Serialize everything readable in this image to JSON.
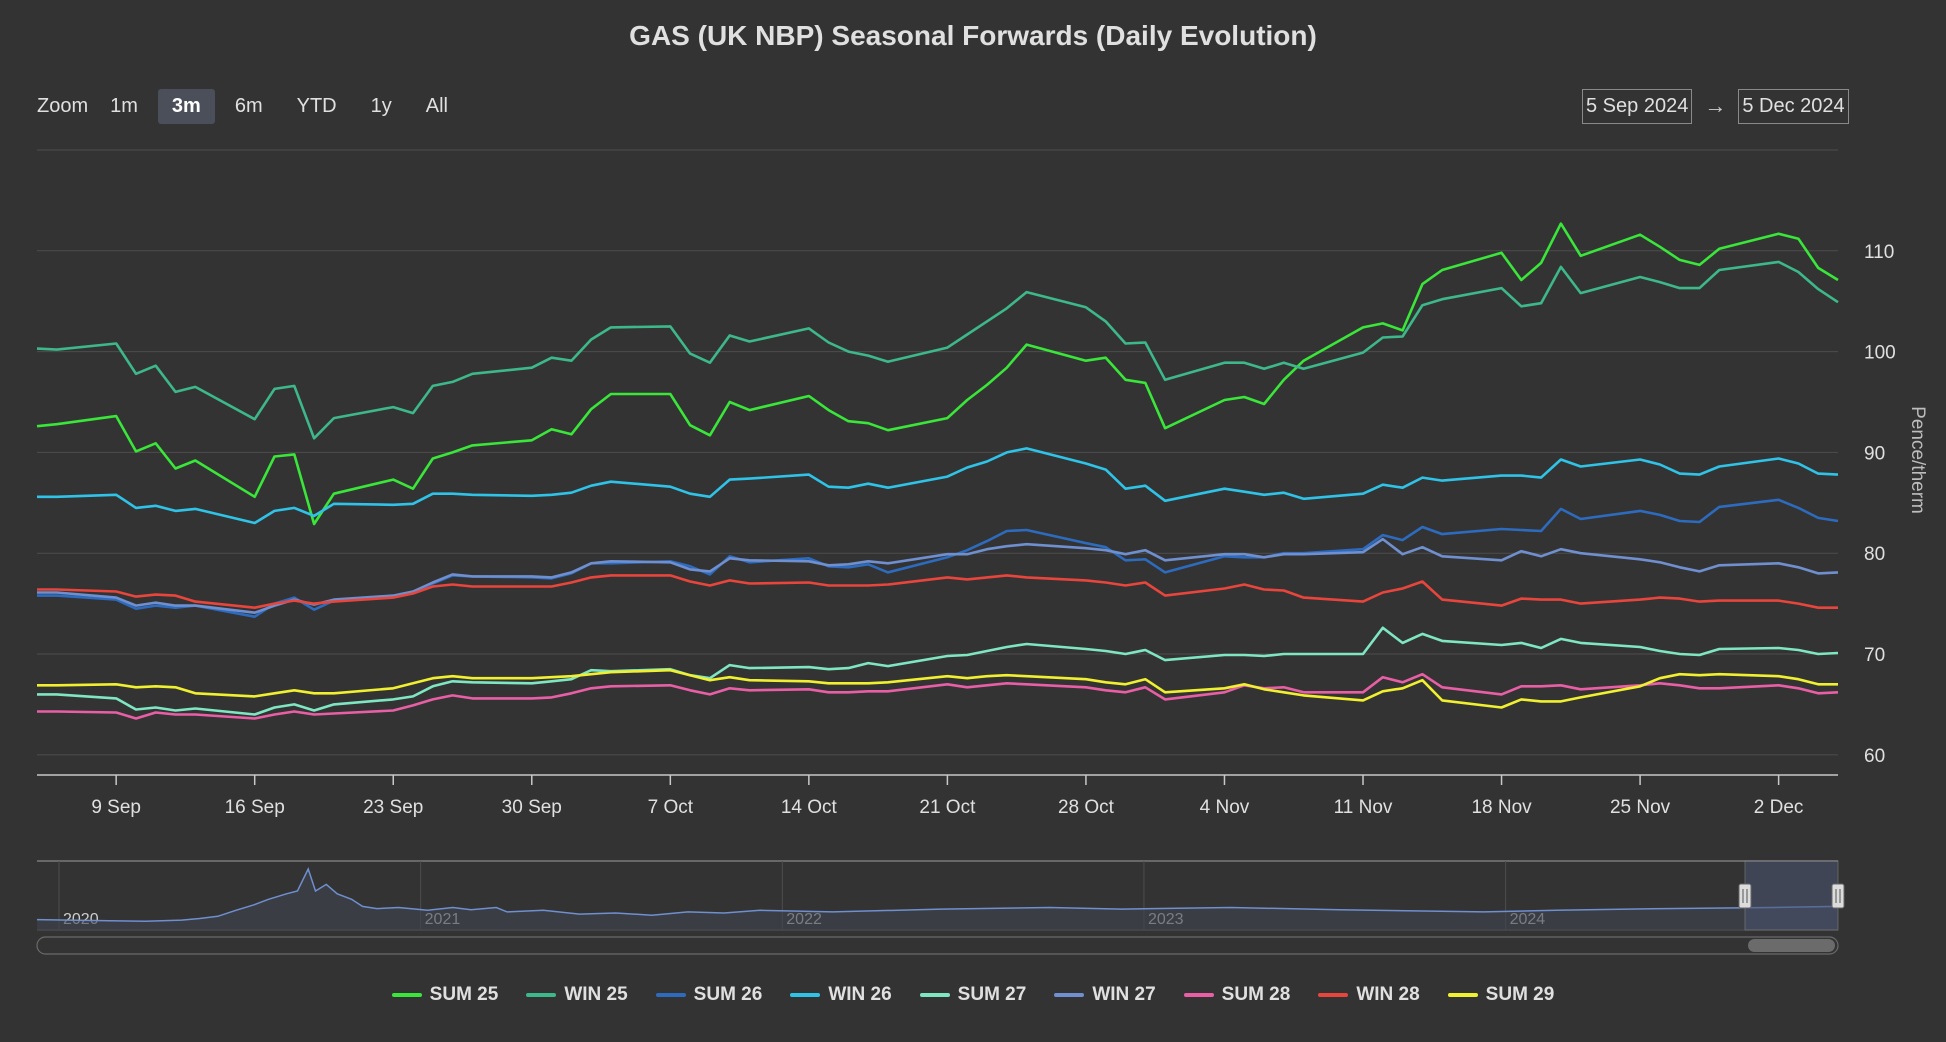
{
  "chart_data": {
    "type": "line",
    "title": "GAS (UK NBP) Seasonal Forwards (Daily Evolution)",
    "ylabel": "Pence/therm",
    "ylim": [
      58,
      120
    ],
    "yticks": [
      60,
      70,
      80,
      90,
      100,
      110
    ],
    "x_start": "2024-09-05",
    "x_end": "2024-12-05",
    "xticks": [
      {
        "date": "2024-09-09",
        "label": "9 Sep"
      },
      {
        "date": "2024-09-16",
        "label": "16 Sep"
      },
      {
        "date": "2024-09-23",
        "label": "23 Sep"
      },
      {
        "date": "2024-09-30",
        "label": "30 Sep"
      },
      {
        "date": "2024-10-07",
        "label": "7 Oct"
      },
      {
        "date": "2024-10-14",
        "label": "14 Oct"
      },
      {
        "date": "2024-10-21",
        "label": "21 Oct"
      },
      {
        "date": "2024-10-28",
        "label": "28 Oct"
      },
      {
        "date": "2024-11-04",
        "label": "4 Nov"
      },
      {
        "date": "2024-11-11",
        "label": "11 Nov"
      },
      {
        "date": "2024-11-18",
        "label": "18 Nov"
      },
      {
        "date": "2024-11-25",
        "label": "25 Nov"
      },
      {
        "date": "2024-12-02",
        "label": "2 Dec"
      }
    ],
    "grid": true,
    "legend_position": "bottom",
    "dates": [
      "2024-09-05",
      "2024-09-06",
      "2024-09-09",
      "2024-09-10",
      "2024-09-11",
      "2024-09-12",
      "2024-09-13",
      "2024-09-16",
      "2024-09-17",
      "2024-09-18",
      "2024-09-19",
      "2024-09-20",
      "2024-09-23",
      "2024-09-24",
      "2024-09-25",
      "2024-09-26",
      "2024-09-27",
      "2024-09-30",
      "2024-10-01",
      "2024-10-02",
      "2024-10-03",
      "2024-10-04",
      "2024-10-07",
      "2024-10-08",
      "2024-10-09",
      "2024-10-10",
      "2024-10-11",
      "2024-10-14",
      "2024-10-15",
      "2024-10-16",
      "2024-10-17",
      "2024-10-18",
      "2024-10-21",
      "2024-10-22",
      "2024-10-23",
      "2024-10-24",
      "2024-10-25",
      "2024-10-28",
      "2024-10-29",
      "2024-10-30",
      "2024-10-31",
      "2024-11-01",
      "2024-11-04",
      "2024-11-05",
      "2024-11-06",
      "2024-11-07",
      "2024-11-08",
      "2024-11-11",
      "2024-11-12",
      "2024-11-13",
      "2024-11-14",
      "2024-11-15",
      "2024-11-18",
      "2024-11-19",
      "2024-11-20",
      "2024-11-21",
      "2024-11-22",
      "2024-11-25",
      "2024-11-26",
      "2024-11-27",
      "2024-11-28",
      "2024-11-29",
      "2024-12-02",
      "2024-12-03",
      "2024-12-04",
      "2024-12-05"
    ],
    "series": [
      {
        "name": "SUM 25",
        "color": "#39e639",
        "values": [
          92.6,
          92.8,
          93.6,
          90.1,
          90.9,
          88.4,
          89.2,
          85.6,
          89.6,
          89.8,
          82.9,
          85.9,
          87.3,
          86.4,
          89.4,
          90.0,
          90.7,
          91.2,
          92.3,
          91.8,
          94.3,
          95.8,
          95.8,
          92.7,
          91.7,
          95.0,
          94.2,
          95.6,
          94.2,
          93.1,
          92.9,
          92.2,
          93.4,
          95.2,
          96.7,
          98.4,
          100.7,
          99.1,
          99.4,
          97.2,
          96.9,
          92.4,
          95.2,
          95.5,
          94.8,
          97.2,
          99.1,
          102.4,
          102.8,
          102.1,
          106.7,
          108.1,
          109.8,
          107.1,
          108.8,
          112.7,
          109.5,
          111.6,
          110.4,
          109.1,
          108.6,
          110.2,
          111.7,
          111.2,
          108.3,
          107.1
        ]
      },
      {
        "name": "WIN 25",
        "color": "#3db88a",
        "values": [
          100.3,
          100.2,
          100.8,
          97.8,
          98.6,
          96.0,
          96.5,
          93.3,
          96.3,
          96.6,
          91.4,
          93.4,
          94.5,
          93.9,
          96.6,
          97.0,
          97.8,
          98.4,
          99.4,
          99.1,
          101.2,
          102.4,
          102.5,
          99.8,
          98.9,
          101.6,
          101.0,
          102.3,
          100.9,
          100.0,
          99.6,
          99.0,
          100.4,
          101.7,
          103.0,
          104.3,
          105.9,
          104.4,
          103.0,
          100.8,
          100.9,
          97.2,
          98.9,
          98.9,
          98.3,
          98.9,
          98.3,
          99.9,
          101.4,
          101.5,
          104.6,
          105.2,
          106.3,
          104.5,
          104.8,
          108.4,
          105.8,
          107.4,
          106.9,
          106.3,
          106.3,
          108.1,
          108.9,
          107.9,
          106.2,
          104.9
        ]
      },
      {
        "name": "SUM 26",
        "color": "#2d6bbf",
        "values": [
          75.8,
          75.8,
          75.4,
          74.5,
          74.8,
          74.6,
          74.8,
          73.7,
          75.0,
          75.6,
          74.4,
          75.3,
          75.7,
          76.1,
          77.0,
          77.8,
          77.7,
          77.6,
          77.5,
          78.0,
          79.0,
          79.0,
          79.2,
          78.7,
          77.9,
          79.7,
          79.1,
          79.5,
          78.7,
          78.6,
          78.9,
          78.1,
          79.6,
          80.3,
          81.2,
          82.2,
          82.3,
          81.0,
          80.6,
          79.3,
          79.4,
          78.1,
          79.7,
          79.6,
          79.6,
          80.0,
          80.0,
          80.4,
          81.8,
          81.3,
          82.6,
          81.9,
          82.4,
          82.3,
          82.2,
          84.4,
          83.4,
          84.2,
          83.8,
          83.2,
          83.1,
          84.6,
          85.3,
          84.5,
          83.5,
          83.2
        ]
      },
      {
        "name": "WIN 26",
        "color": "#2fc3e8",
        "values": [
          85.6,
          85.6,
          85.8,
          84.5,
          84.7,
          84.2,
          84.4,
          83.0,
          84.2,
          84.5,
          83.7,
          84.9,
          84.8,
          84.9,
          85.9,
          85.9,
          85.8,
          85.7,
          85.8,
          86.0,
          86.7,
          87.1,
          86.6,
          85.9,
          85.6,
          87.3,
          87.4,
          87.8,
          86.6,
          86.5,
          86.9,
          86.5,
          87.6,
          88.5,
          89.1,
          90.0,
          90.4,
          88.9,
          88.3,
          86.4,
          86.7,
          85.2,
          86.4,
          86.1,
          85.8,
          86.0,
          85.4,
          85.9,
          86.8,
          86.5,
          87.5,
          87.2,
          87.7,
          87.7,
          87.5,
          89.3,
          88.6,
          89.3,
          88.8,
          87.9,
          87.8,
          88.6,
          89.4,
          88.9,
          87.9,
          87.8
        ]
      },
      {
        "name": "SUM 27",
        "color": "#7fe6c2",
        "values": [
          66.0,
          66.0,
          65.6,
          64.5,
          64.7,
          64.4,
          64.6,
          64.0,
          64.7,
          65.0,
          64.4,
          65.0,
          65.5,
          65.8,
          66.8,
          67.3,
          67.2,
          67.1,
          67.3,
          67.5,
          68.4,
          68.3,
          68.5,
          67.9,
          67.6,
          68.9,
          68.6,
          68.7,
          68.5,
          68.6,
          69.1,
          68.8,
          69.8,
          69.9,
          70.3,
          70.7,
          71.0,
          70.5,
          70.3,
          70.0,
          70.4,
          69.4,
          69.9,
          69.9,
          69.8,
          70.0,
          70.0,
          70.0,
          72.6,
          71.1,
          72.0,
          71.3,
          70.9,
          71.1,
          70.6,
          71.5,
          71.1,
          70.7,
          70.3,
          70.0,
          69.9,
          70.5,
          70.6,
          70.4,
          70.0,
          70.1
        ]
      },
      {
        "name": "WIN 27",
        "color": "#6f8fcf",
        "values": [
          76.1,
          76.1,
          75.6,
          74.8,
          75.1,
          74.8,
          74.8,
          74.1,
          74.8,
          75.4,
          74.9,
          75.4,
          75.8,
          76.2,
          77.1,
          77.9,
          77.7,
          77.7,
          77.6,
          78.1,
          79.0,
          79.2,
          79.1,
          78.4,
          78.2,
          79.5,
          79.3,
          79.2,
          78.8,
          78.9,
          79.2,
          79.0,
          79.9,
          79.9,
          80.4,
          80.7,
          80.9,
          80.5,
          80.3,
          79.9,
          80.3,
          79.3,
          79.9,
          79.9,
          79.6,
          79.9,
          79.9,
          80.1,
          81.4,
          79.9,
          80.6,
          79.7,
          79.3,
          80.2,
          79.7,
          80.4,
          80.0,
          79.4,
          79.1,
          78.6,
          78.2,
          78.8,
          79.0,
          78.6,
          78.0,
          78.1
        ]
      },
      {
        "name": "SUM 28",
        "color": "#e85fa6",
        "values": [
          64.3,
          64.3,
          64.2,
          63.6,
          64.2,
          64.0,
          64.0,
          63.6,
          64.0,
          64.3,
          64.0,
          64.1,
          64.4,
          64.9,
          65.5,
          65.9,
          65.6,
          65.6,
          65.7,
          66.1,
          66.6,
          66.8,
          66.9,
          66.4,
          66.0,
          66.6,
          66.4,
          66.5,
          66.2,
          66.2,
          66.3,
          66.3,
          67.0,
          66.7,
          66.9,
          67.1,
          67.0,
          66.7,
          66.4,
          66.2,
          66.7,
          65.5,
          66.2,
          66.9,
          66.6,
          66.7,
          66.2,
          66.2,
          67.7,
          67.2,
          68.0,
          66.7,
          66.0,
          66.8,
          66.8,
          66.9,
          66.5,
          66.9,
          67.1,
          66.9,
          66.6,
          66.6,
          66.9,
          66.6,
          66.1,
          66.2
        ]
      },
      {
        "name": "WIN 28",
        "color": "#e8453c",
        "values": [
          76.4,
          76.4,
          76.2,
          75.7,
          75.9,
          75.8,
          75.2,
          74.6,
          75.0,
          75.3,
          75.0,
          75.2,
          75.6,
          76.0,
          76.7,
          76.9,
          76.7,
          76.7,
          76.7,
          77.1,
          77.6,
          77.8,
          77.8,
          77.2,
          76.8,
          77.3,
          77.0,
          77.1,
          76.8,
          76.8,
          76.8,
          76.9,
          77.6,
          77.4,
          77.6,
          77.8,
          77.6,
          77.3,
          77.1,
          76.8,
          77.1,
          75.8,
          76.5,
          76.9,
          76.4,
          76.3,
          75.6,
          75.2,
          76.1,
          76.5,
          77.2,
          75.4,
          74.8,
          75.5,
          75.4,
          75.4,
          75.0,
          75.4,
          75.6,
          75.5,
          75.2,
          75.3,
          75.3,
          75.0,
          74.6,
          74.6
        ]
      },
      {
        "name": "SUM 29",
        "color": "#f0f030",
        "values": [
          66.9,
          66.9,
          67.0,
          66.7,
          66.8,
          66.7,
          66.1,
          65.8,
          66.1,
          66.4,
          66.1,
          66.1,
          66.6,
          67.1,
          67.6,
          67.8,
          67.6,
          67.6,
          67.7,
          67.8,
          68.0,
          68.2,
          68.4,
          67.9,
          67.4,
          67.7,
          67.4,
          67.3,
          67.1,
          67.1,
          67.1,
          67.2,
          67.8,
          67.6,
          67.8,
          67.9,
          67.8,
          67.5,
          67.2,
          67.0,
          67.5,
          66.2,
          66.6,
          67.0,
          66.5,
          66.2,
          65.9,
          65.4,
          66.3,
          66.6,
          67.4,
          65.4,
          64.7,
          65.5,
          65.3,
          65.3,
          65.7,
          66.8,
          67.6,
          68.0,
          67.9,
          68.0,
          67.8,
          67.5,
          67.0,
          67.0
        ]
      }
    ],
    "navigator": {
      "year_labels": [
        "2020",
        "2021",
        "2022",
        "2023",
        "2024"
      ]
    }
  },
  "toolbar": {
    "zoom_label": "Zoom",
    "zoom_buttons": [
      "1m",
      "3m",
      "6m",
      "YTD",
      "1y",
      "All"
    ],
    "active_zoom": "3m",
    "range_from": "5 Sep 2024",
    "range_arrow": "→",
    "range_to": "5 Dec 2024"
  },
  "colors": {
    "background": "#333333",
    "grid": "#4d4d4d",
    "axis": "#c8c8c8",
    "text": "#e0e0e0",
    "navigator_mask": "#4a5470",
    "navigator_line": "#6f8fcf"
  }
}
